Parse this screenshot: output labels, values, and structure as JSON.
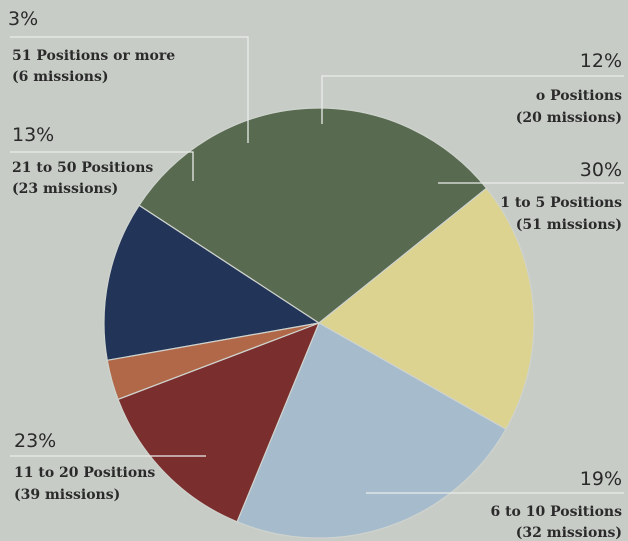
{
  "chart_data": {
    "type": "pie",
    "slices": [
      {
        "percent": "12%",
        "value": 12,
        "label": "o Positions",
        "missions": "(20 missions)",
        "color": "#223457"
      },
      {
        "percent": "30%",
        "value": 30,
        "label": "1 to 5 Positions",
        "missions": "(51 missions)",
        "color": "#586a4f"
      },
      {
        "percent": "19%",
        "value": 19,
        "label": "6 to 10 Positions",
        "missions": "(32 missions)",
        "color": "#ddd390"
      },
      {
        "percent": "23%",
        "value": 23,
        "label": "11 to 20 Positions",
        "missions": "(39 missions)",
        "color": "#a6bccc"
      },
      {
        "percent": "13%",
        "value": 13,
        "label": "21 to 50 Positions",
        "missions": "(23 missions)",
        "color": "#7a2f2e"
      },
      {
        "percent": "3%",
        "value": 3,
        "label": "51 Positions or more",
        "missions": "(6 missions)",
        "color": "#b06848"
      }
    ]
  }
}
